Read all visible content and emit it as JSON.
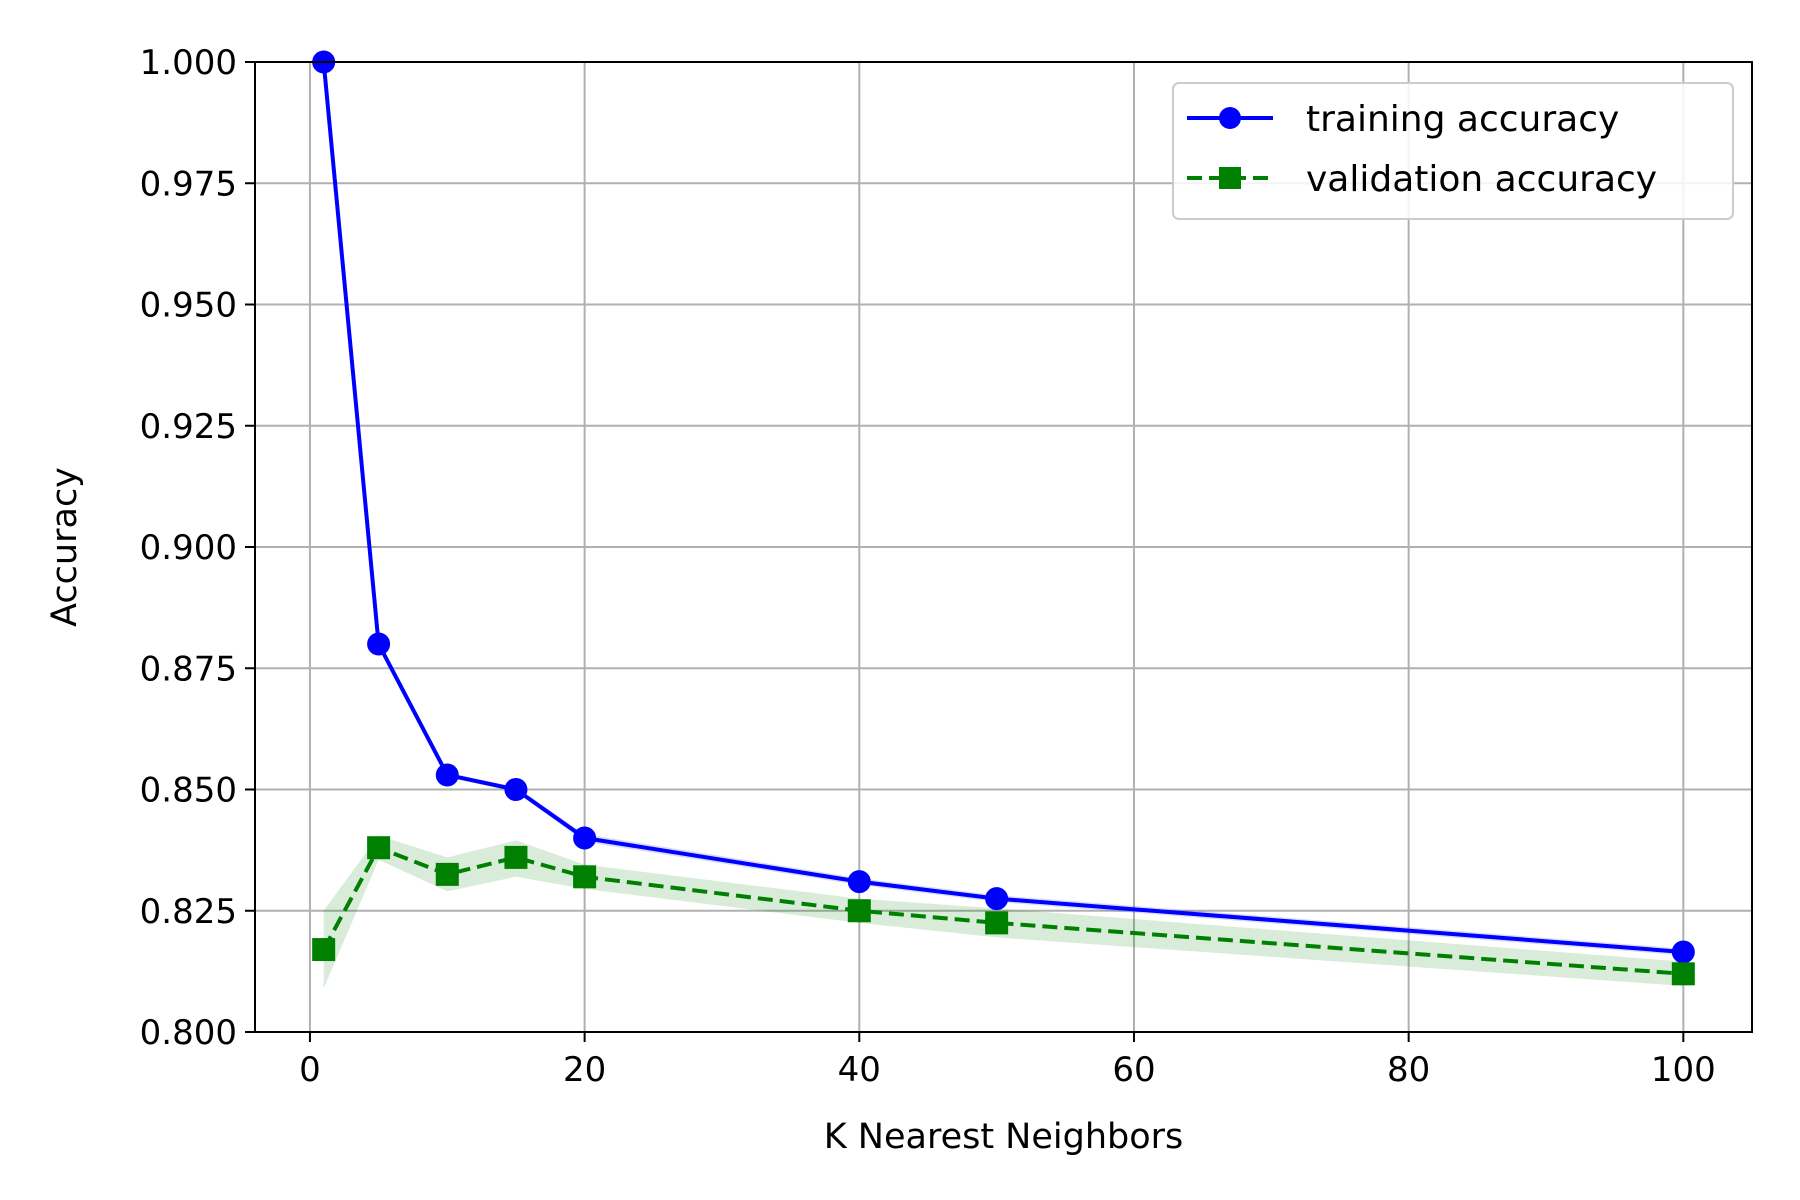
{
  "chart_data": {
    "type": "line",
    "title": "",
    "xlabel": "K Nearest Neighbors",
    "ylabel": "Accuracy",
    "xlim": [
      -4,
      105
    ],
    "ylim": [
      0.8,
      1.0
    ],
    "x_ticks": [
      0,
      20,
      40,
      60,
      80,
      100
    ],
    "x_tick_labels": [
      "0",
      "20",
      "40",
      "60",
      "80",
      "100"
    ],
    "y_ticks": [
      0.8,
      0.825,
      0.85,
      0.875,
      0.9,
      0.925,
      0.95,
      0.975,
      1.0
    ],
    "y_tick_labels": [
      "0.800",
      "0.825",
      "0.850",
      "0.875",
      "0.900",
      "0.925",
      "0.950",
      "0.975",
      "1.000"
    ],
    "grid": true,
    "legend_position": "top-right",
    "x": [
      1,
      5,
      10,
      15,
      20,
      40,
      50,
      100
    ],
    "series": [
      {
        "name": "training accuracy",
        "color": "#0000ff",
        "line_style": "solid",
        "marker": "circle",
        "values": [
          1.0,
          0.88,
          0.853,
          0.85,
          0.84,
          0.831,
          0.8275,
          0.8165
        ],
        "band_lower": [
          1.0,
          0.8795,
          0.8525,
          0.8495,
          0.8392,
          0.8303,
          0.8268,
          0.8158
        ],
        "band_upper": [
          1.0,
          0.8805,
          0.8535,
          0.8505,
          0.8408,
          0.8317,
          0.8282,
          0.8172
        ]
      },
      {
        "name": "validation accuracy",
        "color": "#008000",
        "line_style": "dashed",
        "marker": "square",
        "values": [
          0.817,
          0.838,
          0.8325,
          0.836,
          0.832,
          0.825,
          0.8225,
          0.812
        ],
        "band_lower": [
          0.809,
          0.8355,
          0.829,
          0.832,
          0.8295,
          0.8225,
          0.8195,
          0.8095
        ],
        "band_upper": [
          0.825,
          0.8405,
          0.836,
          0.8395,
          0.8345,
          0.8275,
          0.8255,
          0.8145
        ]
      }
    ]
  }
}
